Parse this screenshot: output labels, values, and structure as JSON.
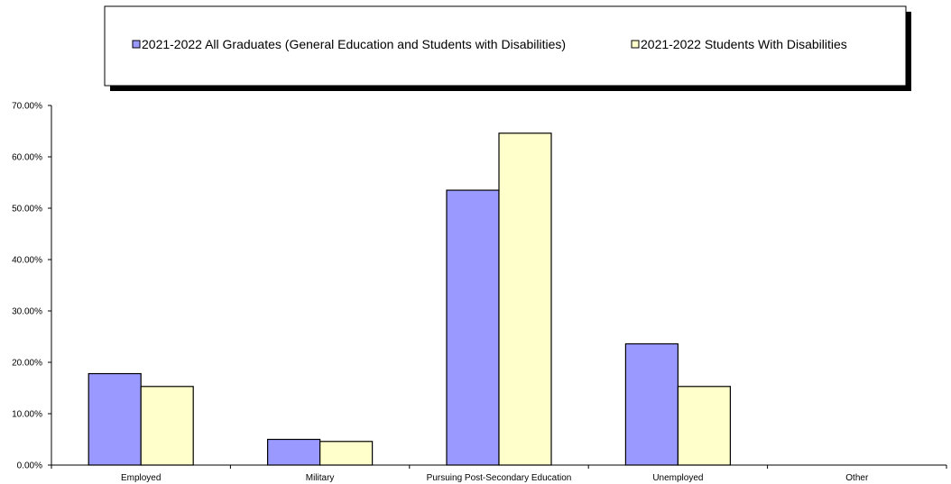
{
  "chart_data": {
    "type": "bar",
    "categories": [
      "Employed",
      "Military",
      "Pursuing Post-Secondary Education",
      "Unemployed",
      "Other"
    ],
    "series": [
      {
        "name": "2021-2022 All Graduates (General Education and Students with Disabilities)",
        "values": [
          17.8,
          5.0,
          53.5,
          23.6,
          0
        ],
        "color": "#9999ff"
      },
      {
        "name": "2021-2022 Students With Disabilities",
        "values": [
          15.3,
          4.6,
          64.6,
          15.3,
          0
        ],
        "color": "#ffffcc"
      }
    ],
    "y_ticks": [
      "0.00%",
      "10.00%",
      "20.00%",
      "30.00%",
      "40.00%",
      "50.00%",
      "60.00%",
      "70.00%"
    ],
    "ylim": [
      0,
      70
    ],
    "unit": "percent",
    "grid": false,
    "legend_position": "top"
  }
}
